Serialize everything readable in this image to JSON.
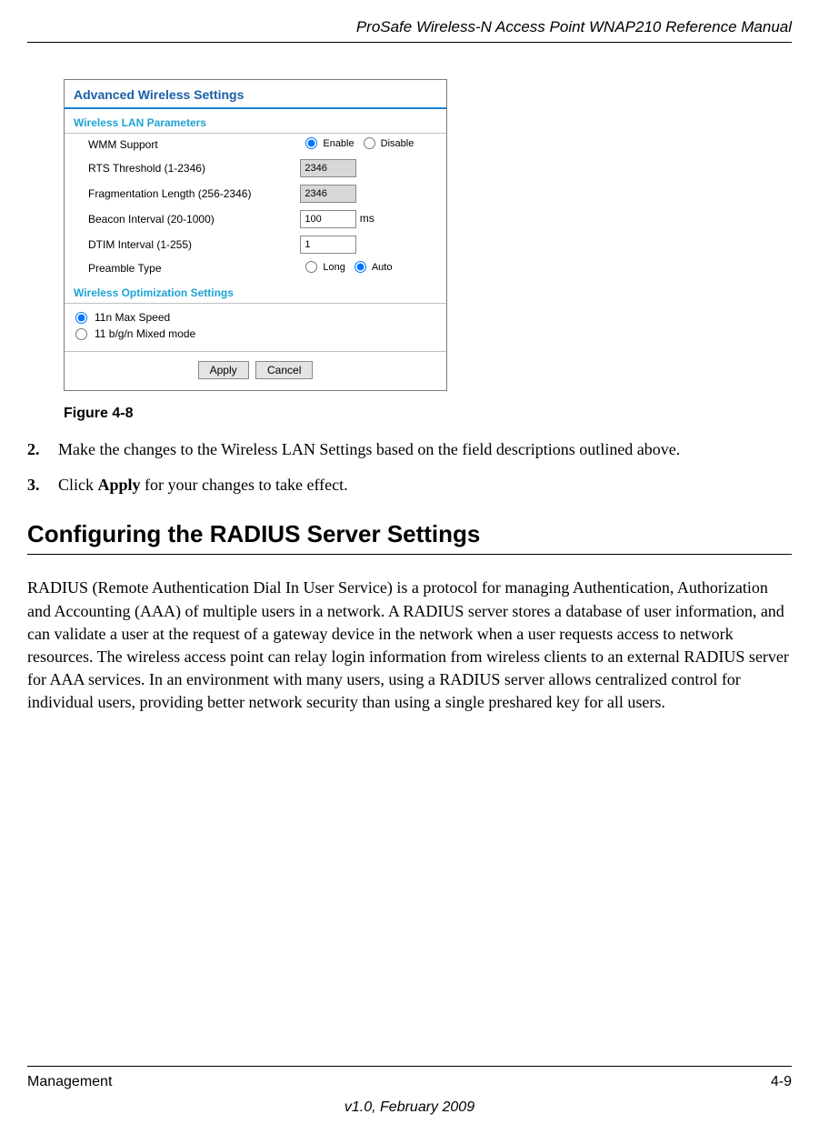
{
  "header": {
    "title": "ProSafe Wireless-N Access Point WNAP210 Reference Manual"
  },
  "figure": {
    "panel_title": "Advanced Wireless Settings",
    "section1_title": "Wireless LAN Parameters",
    "params": {
      "wmm_label": "WMM Support",
      "wmm_enable": "Enable",
      "wmm_disable": "Disable",
      "rts_label": "RTS Threshold (1-2346)",
      "rts_value": "2346",
      "frag_label": "Fragmentation Length (256-2346)",
      "frag_value": "2346",
      "beacon_label": "Beacon Interval (20-1000)",
      "beacon_value": "100",
      "beacon_unit": "ms",
      "dtim_label": "DTIM Interval (1-255)",
      "dtim_value": "1",
      "preamble_label": "Preamble Type",
      "preamble_long": "Long",
      "preamble_auto": "Auto"
    },
    "section2_title": "Wireless Optimization Settings",
    "opt": {
      "max_speed": "11n Max Speed",
      "mixed": "11 b/g/n Mixed mode"
    },
    "buttons": {
      "apply": "Apply",
      "cancel": "Cancel"
    },
    "caption": "Figure 4-8"
  },
  "steps": {
    "s2_num": "2.",
    "s2_text": "Make the changes to the Wireless LAN Settings based on the field descriptions outlined above.",
    "s3_num": "3.",
    "s3_text_a": "Click ",
    "s3_bold": "Apply",
    "s3_text_b": " for your changes to take effect."
  },
  "heading": "Configuring the RADIUS Server Settings",
  "paragraph": "RADIUS (Remote Authentication Dial In User Service) is a protocol for managing Authentication, Authorization and Accounting (AAA) of multiple users in a network. A RADIUS server stores a database of user information, and can validate a user at the request of a gateway device in the network when a user requests access to network resources. The wireless access point can relay login information from wireless clients to an external RADIUS server for AAA services. In an environment with many users, using a RADIUS server allows centralized control for individual users, providing better network security than using a single preshared key for all users.",
  "footer": {
    "left": "Management",
    "right": "4-9",
    "version": "v1.0, February 2009"
  }
}
